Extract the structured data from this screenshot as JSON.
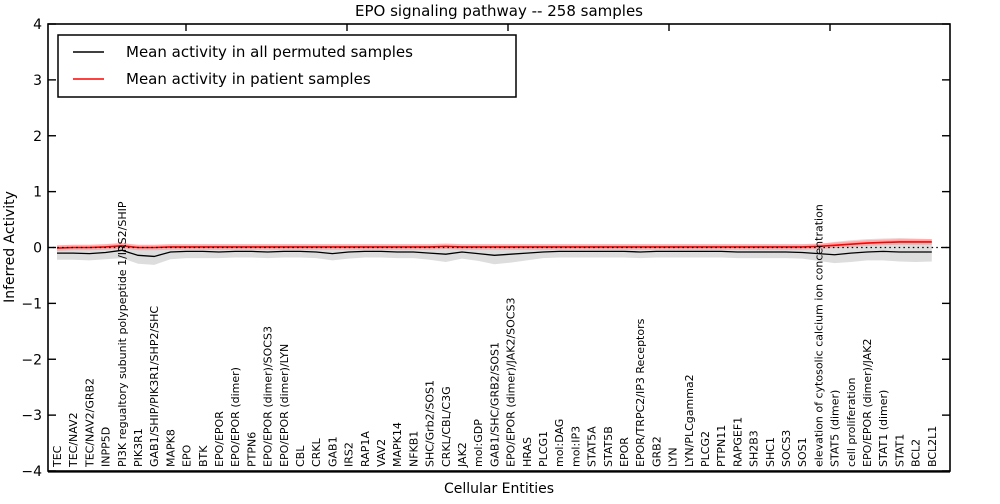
{
  "title": "EPO signaling pathway -- 258 samples",
  "chart_data": {
    "type": "line",
    "title": "EPO signaling pathway -- 258 samples",
    "xlabel": "Cellular Entities",
    "ylabel": "Inferred Activity",
    "ylim": [
      -4,
      4
    ],
    "y_ticks": [
      "4",
      "3",
      "2",
      "1",
      "0",
      "−1",
      "−2",
      "−3",
      "−4"
    ],
    "grid": false,
    "legend_position": "upper left",
    "zero_line": "dotted",
    "colors": {
      "permuted_line": "#000000",
      "patient_line": "#ff0000",
      "permuted_band": "#d9d9d9",
      "patient_band": "#f7a8a8"
    },
    "x_tick_labels": [
      "TEC",
      "TEC/NAV2",
      "TEC/NAV2/GRB2",
      "INPP5D",
      "PI3K regualtory subunit polypeptide 1/IRS2/SHIP",
      "PIK3R1",
      "GAB1/SHIP/PIK3R1/SHP2/SHC",
      "MAPK8",
      "EPO",
      "BTK",
      "EPO/EPOR",
      "EPO/EPOR (dimer)",
      "PTPN6",
      "EPO/EPOR (dimer)/SOCS3",
      "EPO/EPOR (dimer)/LYN",
      "CBL",
      "CRKL",
      "GAB1",
      "IRS2",
      "RAP1A",
      "VAV2",
      "MAPK14",
      "NFKB1",
      "SHC/Grb2/SOS1",
      "CRKL/CBL/C3G",
      "JAK2",
      "mol:GDP",
      "GAB1/SHC/GRB2/SOS1",
      "EPO/EPOR (dimer)/JAK2/SOCS3",
      "HRAS",
      "PLCG1",
      "mol:DAG",
      "mol:IP3",
      "STAT5A",
      "STAT5B",
      "EPOR",
      "EPOR/TRPC2/IP3 Receptors",
      "GRB2",
      "LYN",
      "LYN/PLCgamma2",
      "PLCG2",
      "PTPN11",
      "RAPGEF1",
      "SH2B3",
      "SHC1",
      "SOCS3",
      "SOS1",
      "elevation of cytosolic calcium ion concentration",
      "STAT5 (dimer)",
      "cell proliferation",
      "EPO/EPOR (dimer)/JAK2",
      "STAT1 (dimer)",
      "STAT1",
      "BCL2",
      "BCL2L1"
    ],
    "series": [
      {
        "name": "Mean activity in all permuted samples",
        "color": "#000000",
        "values": [
          -0.1,
          -0.1,
          -0.11,
          -0.09,
          -0.05,
          -0.14,
          -0.16,
          -0.08,
          -0.07,
          -0.07,
          -0.08,
          -0.07,
          -0.07,
          -0.08,
          -0.07,
          -0.07,
          -0.08,
          -0.11,
          -0.08,
          -0.07,
          -0.07,
          -0.08,
          -0.08,
          -0.1,
          -0.12,
          -0.08,
          -0.11,
          -0.14,
          -0.12,
          -0.1,
          -0.08,
          -0.07,
          -0.07,
          -0.07,
          -0.07,
          -0.07,
          -0.08,
          -0.07,
          -0.07,
          -0.07,
          -0.07,
          -0.07,
          -0.08,
          -0.08,
          -0.08,
          -0.08,
          -0.09,
          -0.11,
          -0.13,
          -0.1,
          -0.08,
          -0.07,
          -0.08,
          -0.08,
          -0.08
        ]
      },
      {
        "name": "Mean activity in patient samples",
        "color": "#ff0000",
        "values": [
          -0.01,
          0.0,
          0.0,
          0.01,
          0.03,
          0.0,
          0.0,
          0.01,
          0.01,
          0.01,
          0.01,
          0.01,
          0.01,
          0.01,
          0.01,
          0.01,
          0.01,
          0.01,
          0.01,
          0.01,
          0.01,
          0.01,
          0.01,
          0.01,
          0.02,
          0.01,
          0.01,
          0.01,
          0.01,
          0.01,
          0.01,
          0.01,
          0.01,
          0.01,
          0.01,
          0.01,
          0.01,
          0.01,
          0.01,
          0.01,
          0.01,
          0.01,
          0.01,
          0.01,
          0.01,
          0.01,
          0.01,
          0.02,
          0.04,
          0.06,
          0.08,
          0.09,
          0.1,
          0.1,
          0.1
        ]
      }
    ],
    "permuted_band_upper": [
      0.03,
      0.02,
      0.02,
      0.02,
      0.04,
      0.01,
      0.0,
      0.02,
      0.02,
      0.02,
      0.02,
      0.02,
      0.02,
      0.02,
      0.02,
      0.02,
      0.02,
      0.02,
      0.02,
      0.02,
      0.02,
      0.02,
      0.02,
      0.02,
      0.02,
      0.02,
      0.02,
      0.02,
      0.02,
      0.02,
      0.02,
      0.02,
      0.02,
      0.02,
      0.02,
      0.02,
      0.02,
      0.02,
      0.02,
      0.02,
      0.02,
      0.02,
      0.02,
      0.02,
      0.02,
      0.02,
      0.03,
      0.06,
      0.1,
      0.13,
      0.15,
      0.16,
      0.17,
      0.16,
      0.15
    ],
    "permuted_band_lower": [
      -0.22,
      -0.22,
      -0.23,
      -0.21,
      -0.19,
      -0.29,
      -0.31,
      -0.21,
      -0.19,
      -0.19,
      -0.19,
      -0.18,
      -0.18,
      -0.19,
      -0.18,
      -0.18,
      -0.19,
      -0.23,
      -0.2,
      -0.18,
      -0.18,
      -0.19,
      -0.19,
      -0.22,
      -0.26,
      -0.2,
      -0.24,
      -0.3,
      -0.27,
      -0.23,
      -0.19,
      -0.18,
      -0.18,
      -0.18,
      -0.18,
      -0.18,
      -0.19,
      -0.18,
      -0.18,
      -0.18,
      -0.18,
      -0.18,
      -0.19,
      -0.19,
      -0.19,
      -0.19,
      -0.2,
      -0.24,
      -0.28,
      -0.26,
      -0.23,
      -0.23,
      -0.25,
      -0.26,
      -0.25
    ],
    "patient_band_halfwidth": 0.05
  }
}
